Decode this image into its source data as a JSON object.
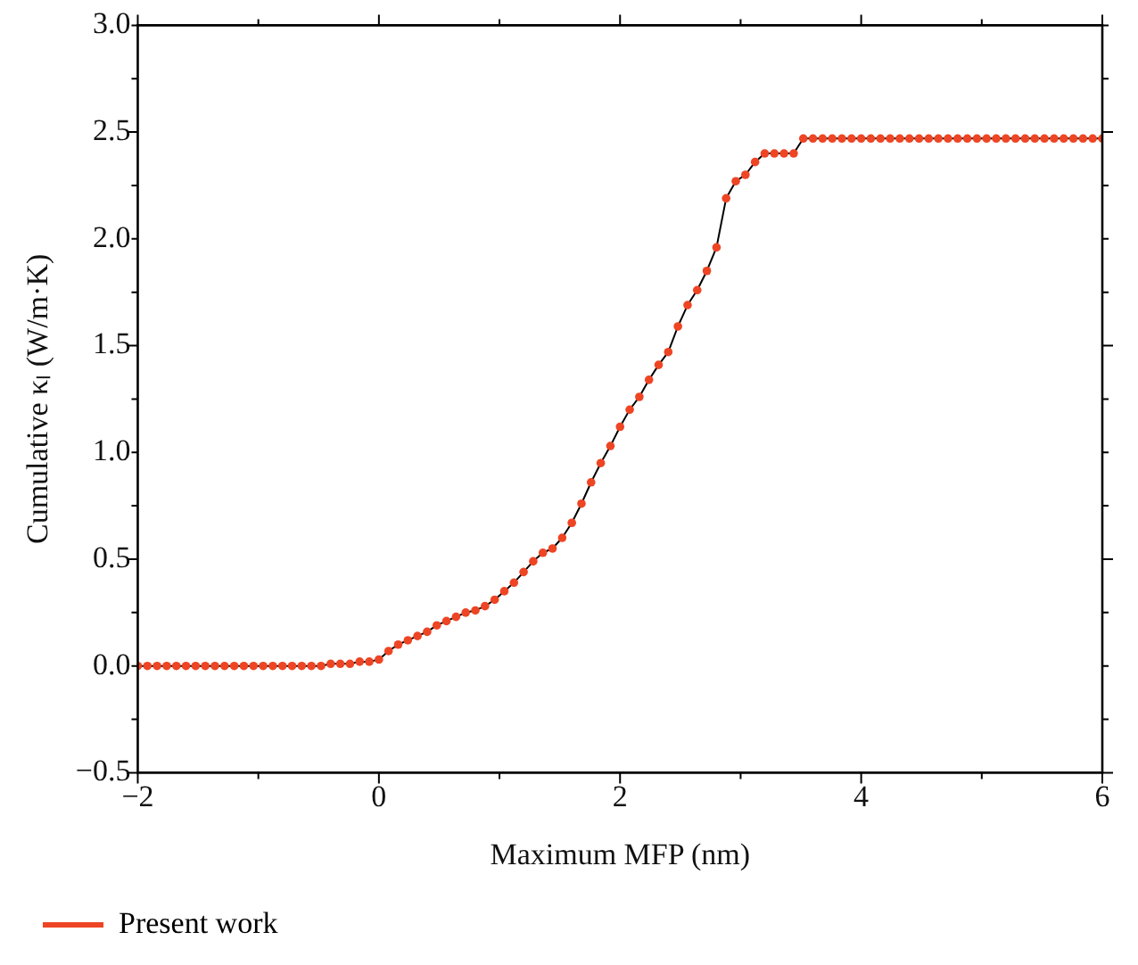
{
  "chart_data": {
    "type": "line",
    "xlabel": "Maximum MFP (nm)",
    "ylabel": "Cumulative κₗ (W/m·K)",
    "x": [
      -2,
      -1.92,
      -1.84,
      -1.76,
      -1.68,
      -1.6,
      -1.52,
      -1.44,
      -1.36,
      -1.28,
      -1.2,
      -1.12,
      -1.04,
      -0.96,
      -0.88,
      -0.8,
      -0.72,
      -0.64,
      -0.56,
      -0.48,
      -0.4,
      -0.32,
      -0.24,
      -0.16,
      -0.08,
      0,
      0.08,
      0.16,
      0.24,
      0.32,
      0.4,
      0.48,
      0.56,
      0.64,
      0.72,
      0.8,
      0.88,
      0.96,
      1.04,
      1.12,
      1.2,
      1.28,
      1.36,
      1.44,
      1.52,
      1.6,
      1.68,
      1.76,
      1.84,
      1.92,
      2,
      2.08,
      2.16,
      2.24,
      2.32,
      2.4,
      2.48,
      2.56,
      2.64,
      2.72,
      2.8,
      2.88,
      2.96,
      3.04,
      3.12,
      3.2,
      3.28,
      3.36,
      3.44,
      3.52,
      3.6,
      3.68,
      3.76,
      3.84,
      3.92,
      4,
      4.08,
      4.16,
      4.24,
      4.32,
      4.4,
      4.48,
      4.56,
      4.64,
      4.72,
      4.8,
      4.88,
      4.96,
      5.04,
      5.12,
      5.2,
      5.28,
      5.36,
      5.44,
      5.52,
      5.6,
      5.68,
      5.76,
      5.84,
      5.92,
      6
    ],
    "series": [
      {
        "name": "Present work",
        "color": "#ee4524",
        "values": [
          0,
          0,
          0,
          0,
          0,
          0,
          0,
          0,
          0,
          0,
          0,
          0,
          0,
          0,
          0,
          0,
          0,
          0,
          0,
          0,
          0.01,
          0.01,
          0.01,
          0.02,
          0.02,
          0.03,
          0.07,
          0.1,
          0.12,
          0.14,
          0.16,
          0.19,
          0.21,
          0.23,
          0.25,
          0.26,
          0.28,
          0.31,
          0.35,
          0.39,
          0.44,
          0.49,
          0.53,
          0.55,
          0.6,
          0.67,
          0.76,
          0.86,
          0.95,
          1.03,
          1.12,
          1.2,
          1.26,
          1.34,
          1.41,
          1.47,
          1.59,
          1.69,
          1.76,
          1.85,
          1.96,
          2.19,
          2.27,
          2.3,
          2.36,
          2.4,
          2.4,
          2.4,
          2.4,
          2.47,
          2.47,
          2.47,
          2.47,
          2.47,
          2.47,
          2.47,
          2.47,
          2.47,
          2.47,
          2.47,
          2.47,
          2.47,
          2.47,
          2.47,
          2.47,
          2.47,
          2.47,
          2.47,
          2.47,
          2.47,
          2.47,
          2.47,
          2.47,
          2.47,
          2.47,
          2.47,
          2.47,
          2.47,
          2.47,
          2.47,
          2.47
        ]
      }
    ],
    "xlim": [
      -2,
      6
    ],
    "xticks": [
      -2,
      {
        "value": -1,
        "label": null
      },
      0,
      {
        "value": 1,
        "label": null
      },
      2,
      {
        "value": 3,
        "label": null
      },
      4,
      {
        "value": 5,
        "label": null
      },
      6
    ],
    "ylim": [
      -0.5,
      3
    ],
    "yticks": [
      -0.5,
      {
        "value": -0.25,
        "label": null
      },
      {
        "value": 0,
        "label": "0.0"
      },
      {
        "value": 0.25,
        "label": null
      },
      0.5,
      {
        "value": 0.75,
        "label": null
      },
      {
        "value": 1,
        "label": "1.0"
      },
      {
        "value": 1.25,
        "label": null
      },
      1.5,
      {
        "value": 1.75,
        "label": null
      },
      {
        "value": 2,
        "label": "2.0"
      },
      {
        "value": 2.25,
        "label": null
      },
      2.5,
      {
        "value": 2.75,
        "label": null
      },
      {
        "value": 3,
        "label": "3.0"
      }
    ],
    "grid": false,
    "legend": "bottom left",
    "marker": "circle",
    "line_style": "solid"
  }
}
